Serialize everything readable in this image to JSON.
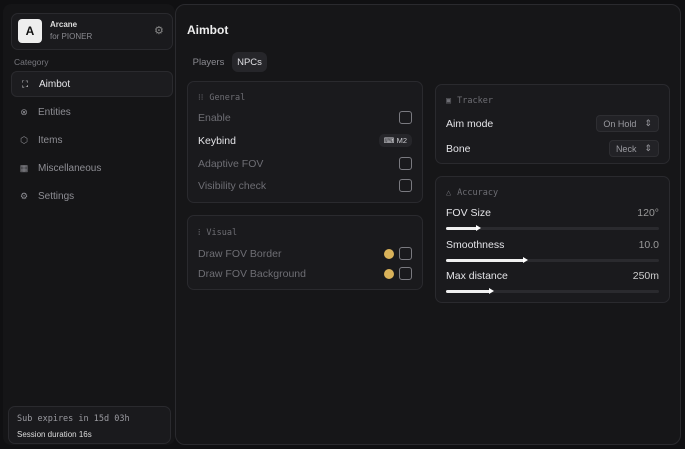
{
  "app": {
    "logo_letter": "A",
    "name": "Arcane",
    "subtitle": "for PIONER"
  },
  "sidebar": {
    "category_label": "Category",
    "items": [
      {
        "label": "Aimbot",
        "icon": "crosshair-icon",
        "active": true
      },
      {
        "label": "Entities",
        "icon": "entities-icon"
      },
      {
        "label": "Items",
        "icon": "cube-icon"
      },
      {
        "label": "Miscellaneous",
        "icon": "grid-icon"
      },
      {
        "label": "Settings",
        "icon": "gear-icon"
      }
    ],
    "footer": {
      "sub": "Sub expires in 15d 03h",
      "session": "Session duration 16s"
    }
  },
  "main": {
    "title": "Aimbot",
    "tabs": [
      {
        "label": "Players"
      },
      {
        "label": "NPCs",
        "active": true
      }
    ],
    "general": {
      "title": "General",
      "enable": "Enable",
      "keybind": "Keybind",
      "keybind_value": "M2",
      "adaptive": "Adaptive FOV",
      "visibility": "Visibility check"
    },
    "visual": {
      "title": "Visual",
      "border": "Draw FOV Border",
      "background": "Draw FOV Background",
      "color": "#d9b25a"
    },
    "tracker": {
      "title": "Tracker",
      "aim_mode": "Aim mode",
      "aim_mode_value": "On Hold",
      "bone": "Bone",
      "bone_value": "Neck"
    },
    "accuracy": {
      "title": "Accuracy",
      "fov": {
        "label": "FOV Size",
        "value": "120°",
        "fill_pct": 15
      },
      "smooth": {
        "label": "Smoothness",
        "value": "10.0",
        "fill_pct": 37
      },
      "dist": {
        "label": "Max distance",
        "value": "250m",
        "fill_pct": 21
      }
    }
  }
}
